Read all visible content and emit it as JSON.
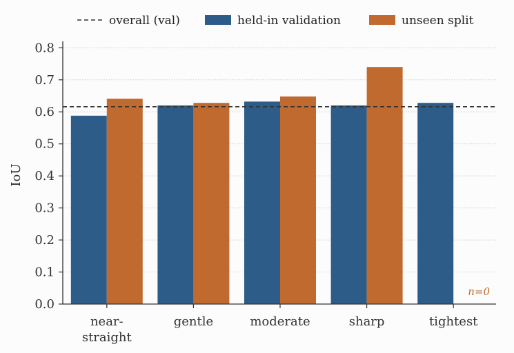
{
  "chart_data": {
    "type": "bar",
    "categories": [
      [
        "near-",
        "straight"
      ],
      [
        "gentle"
      ],
      [
        "moderate"
      ],
      [
        "sharp"
      ],
      [
        "tightest"
      ]
    ],
    "series": [
      {
        "name": "held-in validation",
        "color": "#2e5c88",
        "values": [
          0.588,
          0.62,
          0.632,
          0.62,
          0.628
        ]
      },
      {
        "name": "unseen split",
        "color": "#c06a30",
        "values": [
          0.641,
          0.628,
          0.648,
          0.74,
          null
        ]
      }
    ],
    "reference_line": {
      "name": "overall (val)",
      "value": 0.616,
      "style": "dashed",
      "color": "#333333"
    },
    "ylabel": "IoU",
    "xlabel": "",
    "ylim": [
      0,
      0.82
    ],
    "yticks": [
      "0.0",
      "0.1",
      "0.2",
      "0.3",
      "0.4",
      "0.5",
      "0.6",
      "0.7",
      "0.8"
    ],
    "grid": "y dotted",
    "legend_position": "top",
    "annotation": {
      "text": "n=0",
      "category_index": 4,
      "color": "#c06a30"
    }
  }
}
